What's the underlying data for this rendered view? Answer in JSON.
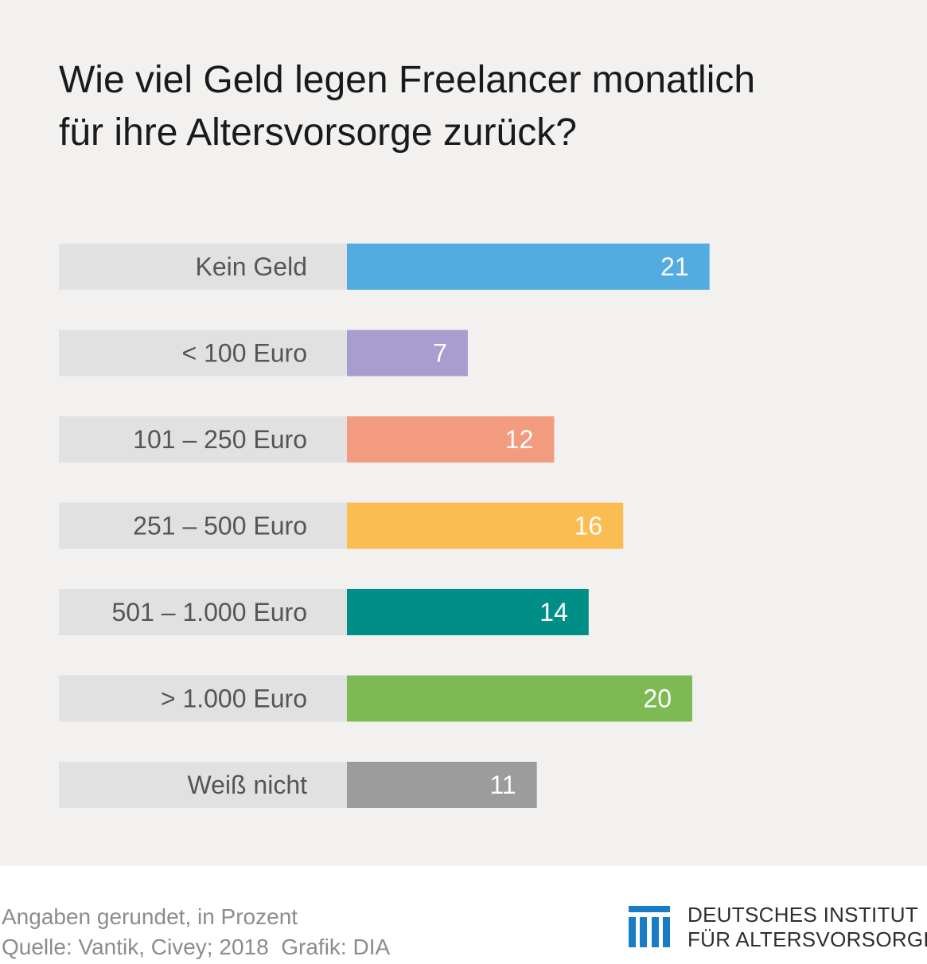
{
  "title": {
    "line1": "Wie viel Geld legen Freelancer monatlich",
    "line2": "für ihre Altersvorsorge zurück?"
  },
  "chart_data": {
    "type": "bar",
    "orientation": "horizontal",
    "title": "Wie viel Geld legen Freelancer monatlich für ihre Altersvorsorge zurück?",
    "categories": [
      "Kein Geld",
      "< 100 Euro",
      "101 – 250 Euro",
      "251 – 500 Euro",
      "501 – 1.000 Euro",
      "> 1.000 Euro",
      "Weiß nicht"
    ],
    "values": [
      21,
      7,
      12,
      16,
      14,
      20,
      11
    ],
    "colors": [
      "#52ace2",
      "#a99ccf",
      "#f39b7e",
      "#fbbd51",
      "#008f86",
      "#7dba54",
      "#9c9c9c"
    ],
    "label_background": "#e1e1e1",
    "grid": false,
    "legend": "none"
  },
  "footer": {
    "note": "Angaben gerundet, in Prozent",
    "source": "Quelle: Vantik, Civey; 2018",
    "graphic": "Grafik: DIA"
  },
  "logo": {
    "icon": "columns-logo-icon",
    "color": "#1a7cc4",
    "line1": "DEUTSCHES INSTITUT",
    "line2": "FÜR ALTERSVORSORGE"
  }
}
